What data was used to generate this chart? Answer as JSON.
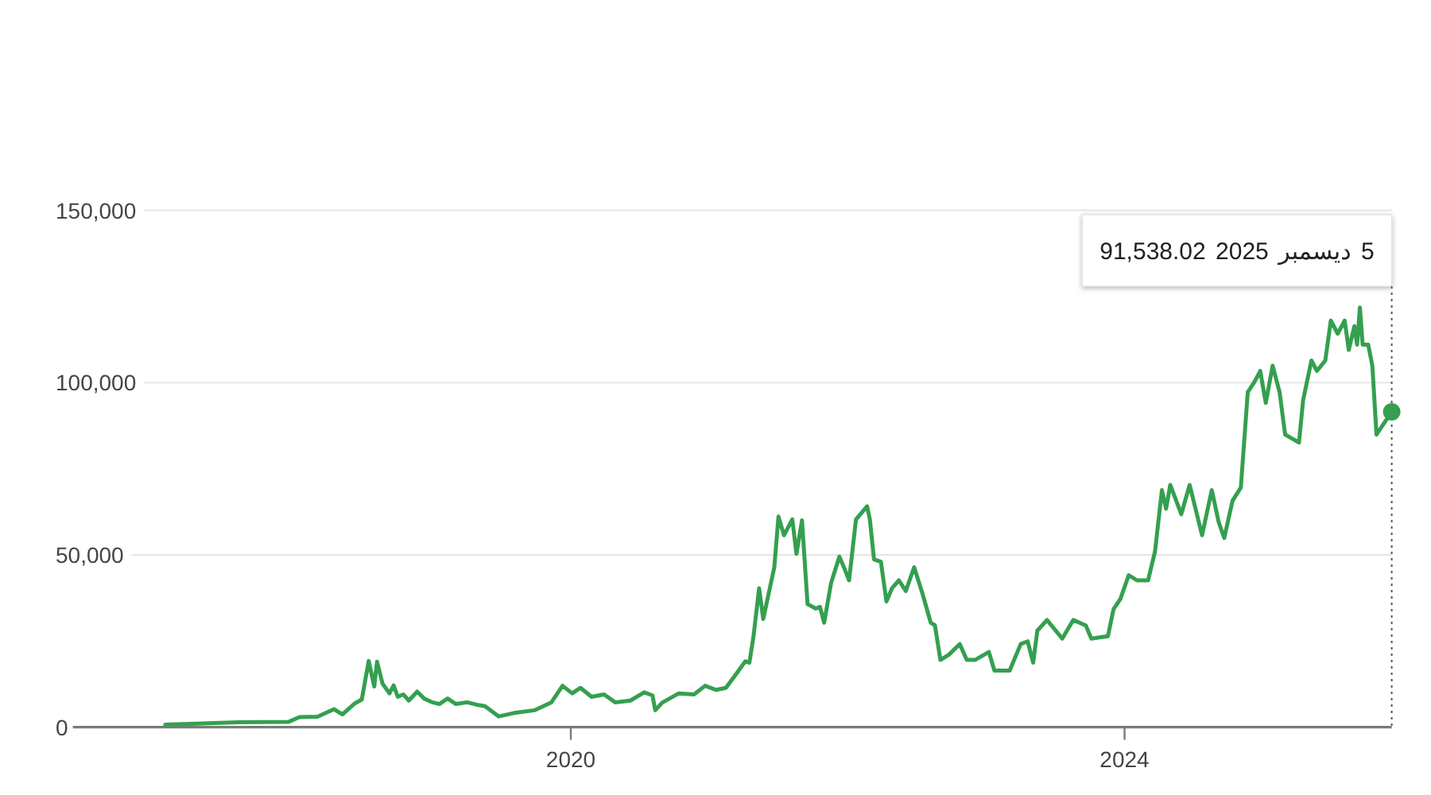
{
  "chart_data": {
    "type": "line",
    "x": [
      2017.07,
      2017.6,
      2017.96,
      2018.04,
      2018.17,
      2018.29,
      2018.35,
      2018.44,
      2018.49,
      2018.54,
      2018.58,
      2018.6,
      2018.64,
      2018.69,
      2018.72,
      2018.75,
      2018.79,
      2018.83,
      2018.89,
      2018.94,
      2019.0,
      2019.05,
      2019.11,
      2019.17,
      2019.25,
      2019.32,
      2019.38,
      2019.48,
      2019.59,
      2019.74,
      2019.86,
      2019.94,
      2020.01,
      2020.07,
      2020.15,
      2020.24,
      2020.32,
      2020.43,
      2020.53,
      2020.59,
      2020.61,
      2020.66,
      2020.78,
      2020.89,
      2020.97,
      2021.05,
      2021.12,
      2021.2,
      2021.26,
      2021.29,
      2021.32,
      2021.36,
      2021.39,
      2021.47,
      2021.5,
      2021.54,
      2021.6,
      2021.63,
      2021.67,
      2021.71,
      2021.77,
      2021.8,
      2021.83,
      2021.88,
      2021.94,
      2021.98,
      2022.01,
      2022.06,
      2022.14,
      2022.16,
      2022.19,
      2022.24,
      2022.28,
      2022.32,
      2022.37,
      2022.42,
      2022.48,
      2022.54,
      2022.6,
      2022.63,
      2022.67,
      2022.73,
      2022.81,
      2022.86,
      2022.92,
      2023.02,
      2023.06,
      2023.17,
      2023.25,
      2023.3,
      2023.34,
      2023.37,
      2023.44,
      2023.55,
      2023.63,
      2023.72,
      2023.76,
      2023.88,
      2023.92,
      2023.97,
      2024.03,
      2024.09,
      2024.17,
      2024.22,
      2024.27,
      2024.3,
      2024.33,
      2024.41,
      2024.47,
      2024.56,
      2024.63,
      2024.68,
      2024.72,
      2024.78,
      2024.84,
      2024.89,
      2024.94,
      2024.98,
      2025.02,
      2025.07,
      2025.12,
      2025.16,
      2025.26,
      2025.29,
      2025.35,
      2025.39,
      2025.45,
      2025.49,
      2025.54,
      2025.59,
      2025.62,
      2025.66,
      2025.68,
      2025.7,
      2025.72,
      2025.76,
      2025.79,
      2025.82,
      2025.93
    ],
    "series": [
      {
        "color": "#34a04f",
        "values": [
          700,
          1400,
          1500,
          2900,
          3000,
          5200,
          3700,
          6900,
          8000,
          19200,
          11800,
          19000,
          12600,
          9800,
          12100,
          8800,
          9500,
          7700,
          10300,
          8300,
          7200,
          6700,
          8300,
          6700,
          7200,
          6500,
          6100,
          3100,
          4100,
          4900,
          7200,
          12000,
          9800,
          11400,
          8800,
          9500,
          7200,
          7700,
          10100,
          9200,
          4900,
          7100,
          9800,
          9500,
          12000,
          10800,
          11400,
          15700,
          19100,
          18700,
          26400,
          40300,
          31400,
          46400,
          61100,
          55700,
          60300,
          50300,
          60000,
          35700,
          34400,
          34900,
          30300,
          41800,
          49500,
          45700,
          42600,
          60300,
          64100,
          60300,
          48700,
          48000,
          36500,
          40300,
          42600,
          39500,
          46400,
          38800,
          30300,
          29600,
          19500,
          21000,
          24100,
          19500,
          19500,
          21800,
          16400,
          16400,
          24100,
          24900,
          18700,
          28000,
          31100,
          25700,
          31100,
          29500,
          25700,
          26400,
          34200,
          37200,
          44100,
          42600,
          42600,
          51000,
          68800,
          63400,
          70300,
          61800,
          70300,
          55700,
          68800,
          59500,
          54900,
          65700,
          69500,
          97200,
          100300,
          103400,
          94100,
          104900,
          97200,
          84900,
          82600,
          94900,
          106400,
          103400,
          106400,
          118000,
          114200,
          118000,
          109500,
          116400,
          111000,
          121800,
          111000,
          111000,
          104900,
          84900,
          91538.02
        ]
      }
    ],
    "xlim": [
      2016.8,
      2025.93
    ],
    "xticks": [
      2020,
      2024
    ],
    "ylim": [
      0,
      150000
    ],
    "yticks": [
      {
        "value": 0,
        "label": "0"
      },
      {
        "value": 50000,
        "label": "50,000"
      },
      {
        "value": 100000,
        "label": "100,000"
      },
      {
        "value": 150000,
        "label": "150,000"
      }
    ],
    "grid": "y",
    "annotations": [
      {
        "text": "5 ديسمبر 2025 91,538.02",
        "x": 2025.93,
        "y": 91538.02
      }
    ]
  }
}
